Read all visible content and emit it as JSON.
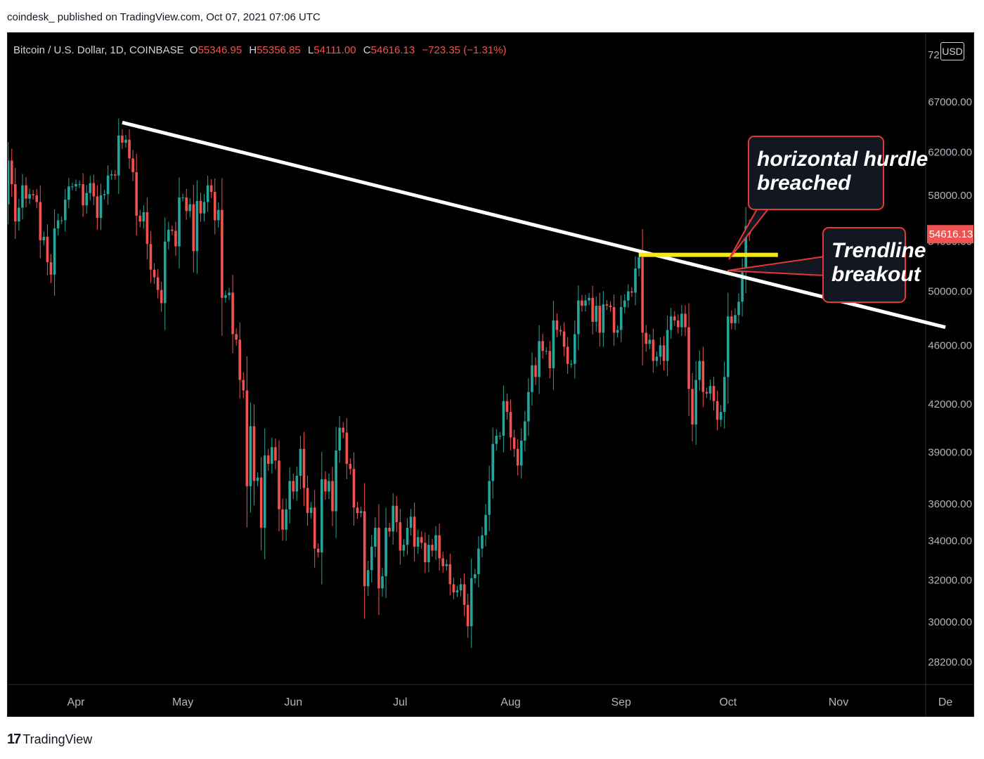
{
  "header": {
    "published_line": "coindesk_  published on TradingView.com, Oct 07, 2021 07:06 UTC"
  },
  "legend": {
    "symbol": "Bitcoin / U.S. Dollar, 1D, COINBASE",
    "o_label": "O",
    "o_value": "55346.95",
    "h_label": "H",
    "h_value": "55356.85",
    "l_label": "L",
    "l_value": "54111.00",
    "c_label": "C",
    "c_value": "54616.13",
    "change": "−723.35 (−1.31%)"
  },
  "currency_button": "USD",
  "footer": {
    "brand": "TradingView",
    "logo_text": "17"
  },
  "colors": {
    "up": "#26a69a",
    "down": "#ef5350",
    "background": "#000000",
    "trendline": "#ffffff",
    "hurdle": "#f5e71a",
    "callout_border": "#e53935",
    "callout_fill": "#131722"
  },
  "annotations": {
    "hurdle_callout": [
      "horizontal hurdle",
      "breached"
    ],
    "trend_callout": [
      "Trendline",
      "breakout"
    ]
  },
  "chart_data": {
    "type": "candlestick",
    "ylim": [
      28000,
      72000
    ],
    "y_scale": "log",
    "y_ticks": [
      "67000.00",
      "62000.00",
      "58000.00",
      "54000.00",
      "50000.00",
      "46000.00",
      "42000.00",
      "39000.00",
      "36000.00",
      "34000.00",
      "32000.00",
      "30000.00",
      "28200.00"
    ],
    "y_tick_values": [
      67000,
      62000,
      58000,
      54000,
      50000,
      46000,
      42000,
      39000,
      36000,
      34000,
      32000,
      30000,
      28200
    ],
    "top_tick_partial": "72",
    "x_ticks": [
      "Apr",
      "May",
      "Jun",
      "Jul",
      "Aug",
      "Sep",
      "Oct",
      "Nov",
      "De"
    ],
    "x_tick_dates": [
      "2021-04-01",
      "2021-05-01",
      "2021-06-01",
      "2021-07-01",
      "2021-08-01",
      "2021-09-01",
      "2021-10-01",
      "2021-11-01",
      "2021-12-01"
    ],
    "x_range": [
      "2021-03-12",
      "2021-12-01"
    ],
    "last_price_label": "54616.13",
    "last_price": 54616.13,
    "trendline": {
      "from": [
        "2021-04-14",
        64900
      ],
      "to": [
        "2021-12-01",
        47300
      ]
    },
    "horizontal_hurdle": {
      "from": "2021-09-06",
      "to": "2021-10-15",
      "price": 52900
    },
    "closes": [
      [
        "2021-03-12",
        57200
      ],
      [
        "2021-03-13",
        61200
      ],
      [
        "2021-03-14",
        59000
      ],
      [
        "2021-03-15",
        55700
      ],
      [
        "2021-03-16",
        56900
      ],
      [
        "2021-03-17",
        58900
      ],
      [
        "2021-03-18",
        57700
      ],
      [
        "2021-03-19",
        58100
      ],
      [
        "2021-03-20",
        58000
      ],
      [
        "2021-03-21",
        57400
      ],
      [
        "2021-03-22",
        54100
      ],
      [
        "2021-03-23",
        54400
      ],
      [
        "2021-03-24",
        52300
      ],
      [
        "2021-03-25",
        51300
      ],
      [
        "2021-03-26",
        55100
      ],
      [
        "2021-03-27",
        55800
      ],
      [
        "2021-03-28",
        55800
      ],
      [
        "2021-03-29",
        57600
      ],
      [
        "2021-03-30",
        58800
      ],
      [
        "2021-03-31",
        58800
      ],
      [
        "2021-04-01",
        59000
      ],
      [
        "2021-04-02",
        59000
      ],
      [
        "2021-04-03",
        57100
      ],
      [
        "2021-04-04",
        58200
      ],
      [
        "2021-04-05",
        59100
      ],
      [
        "2021-04-06",
        57900
      ],
      [
        "2021-04-07",
        56000
      ],
      [
        "2021-04-08",
        58000
      ],
      [
        "2021-04-09",
        58100
      ],
      [
        "2021-04-10",
        59800
      ],
      [
        "2021-04-11",
        59900
      ],
      [
        "2021-04-12",
        59800
      ],
      [
        "2021-04-13",
        63600
      ],
      [
        "2021-04-14",
        62900
      ],
      [
        "2021-04-15",
        63200
      ],
      [
        "2021-04-16",
        61400
      ],
      [
        "2021-04-17",
        60100
      ],
      [
        "2021-04-18",
        56200
      ],
      [
        "2021-04-19",
        55700
      ],
      [
        "2021-04-20",
        56500
      ],
      [
        "2021-04-21",
        53800
      ],
      [
        "2021-04-22",
        51700
      ],
      [
        "2021-04-23",
        51100
      ],
      [
        "2021-04-24",
        50100
      ],
      [
        "2021-04-25",
        49100
      ],
      [
        "2021-04-26",
        54000
      ],
      [
        "2021-04-27",
        55000
      ],
      [
        "2021-04-28",
        54900
      ],
      [
        "2021-04-29",
        53600
      ],
      [
        "2021-04-30",
        57800
      ],
      [
        "2021-05-01",
        57800
      ],
      [
        "2021-05-02",
        56600
      ],
      [
        "2021-05-03",
        57200
      ],
      [
        "2021-05-04",
        53200
      ],
      [
        "2021-05-05",
        57500
      ],
      [
        "2021-05-06",
        56400
      ],
      [
        "2021-05-07",
        57400
      ],
      [
        "2021-05-08",
        58900
      ],
      [
        "2021-05-09",
        58300
      ],
      [
        "2021-05-10",
        55800
      ],
      [
        "2021-05-11",
        56700
      ],
      [
        "2021-05-12",
        49500
      ],
      [
        "2021-05-13",
        49700
      ],
      [
        "2021-05-14",
        49900
      ],
      [
        "2021-05-15",
        46800
      ],
      [
        "2021-05-16",
        46400
      ],
      [
        "2021-05-17",
        43600
      ],
      [
        "2021-05-18",
        42900
      ],
      [
        "2021-05-19",
        37000
      ],
      [
        "2021-05-20",
        40600
      ],
      [
        "2021-05-21",
        37300
      ],
      [
        "2021-05-22",
        37500
      ],
      [
        "2021-05-23",
        34700
      ],
      [
        "2021-05-24",
        38800
      ],
      [
        "2021-05-25",
        38300
      ],
      [
        "2021-05-26",
        39300
      ],
      [
        "2021-05-27",
        38500
      ],
      [
        "2021-05-28",
        35700
      ],
      [
        "2021-05-29",
        34600
      ],
      [
        "2021-05-30",
        35700
      ],
      [
        "2021-05-31",
        37300
      ],
      [
        "2021-06-01",
        36700
      ],
      [
        "2021-06-02",
        37600
      ],
      [
        "2021-06-03",
        39200
      ],
      [
        "2021-06-04",
        36900
      ],
      [
        "2021-06-05",
        35500
      ],
      [
        "2021-06-06",
        35800
      ],
      [
        "2021-06-07",
        33600
      ],
      [
        "2021-06-08",
        33400
      ],
      [
        "2021-06-09",
        37400
      ],
      [
        "2021-06-10",
        36700
      ],
      [
        "2021-06-11",
        37300
      ],
      [
        "2021-06-12",
        35600
      ],
      [
        "2021-06-13",
        39100
      ],
      [
        "2021-06-14",
        40500
      ],
      [
        "2021-06-15",
        40200
      ],
      [
        "2021-06-16",
        38300
      ],
      [
        "2021-06-17",
        38000
      ],
      [
        "2021-06-18",
        35800
      ],
      [
        "2021-06-19",
        35500
      ],
      [
        "2021-06-20",
        35600
      ],
      [
        "2021-06-21",
        31700
      ],
      [
        "2021-06-22",
        32500
      ],
      [
        "2021-06-23",
        33700
      ],
      [
        "2021-06-24",
        34700
      ],
      [
        "2021-06-25",
        31600
      ],
      [
        "2021-06-26",
        32200
      ],
      [
        "2021-06-27",
        34700
      ],
      [
        "2021-06-28",
        34500
      ],
      [
        "2021-06-29",
        35900
      ],
      [
        "2021-06-30",
        35000
      ],
      [
        "2021-07-01",
        33500
      ],
      [
        "2021-07-02",
        33800
      ],
      [
        "2021-07-03",
        34700
      ],
      [
        "2021-07-04",
        35300
      ],
      [
        "2021-07-05",
        33700
      ],
      [
        "2021-07-06",
        34200
      ],
      [
        "2021-07-07",
        33900
      ],
      [
        "2021-07-08",
        32900
      ],
      [
        "2021-07-09",
        33800
      ],
      [
        "2021-07-10",
        33500
      ],
      [
        "2021-07-11",
        34300
      ],
      [
        "2021-07-12",
        33100
      ],
      [
        "2021-07-13",
        32700
      ],
      [
        "2021-07-14",
        32800
      ],
      [
        "2021-07-15",
        31800
      ],
      [
        "2021-07-16",
        31400
      ],
      [
        "2021-07-17",
        31500
      ],
      [
        "2021-07-18",
        31800
      ],
      [
        "2021-07-19",
        30800
      ],
      [
        "2021-07-20",
        29800
      ],
      [
        "2021-07-21",
        32100
      ],
      [
        "2021-07-22",
        32300
      ],
      [
        "2021-07-23",
        33600
      ],
      [
        "2021-07-24",
        34300
      ],
      [
        "2021-07-25",
        35400
      ],
      [
        "2021-07-26",
        37300
      ],
      [
        "2021-07-27",
        39500
      ],
      [
        "2021-07-28",
        40000
      ],
      [
        "2021-07-29",
        40000
      ],
      [
        "2021-07-30",
        42200
      ],
      [
        "2021-07-31",
        41500
      ],
      [
        "2021-08-01",
        39900
      ],
      [
        "2021-08-02",
        39200
      ],
      [
        "2021-08-03",
        38200
      ],
      [
        "2021-08-04",
        39700
      ],
      [
        "2021-08-05",
        40900
      ],
      [
        "2021-08-06",
        42800
      ],
      [
        "2021-08-07",
        44600
      ],
      [
        "2021-08-08",
        43800
      ],
      [
        "2021-08-09",
        46300
      ],
      [
        "2021-08-10",
        45600
      ],
      [
        "2021-08-11",
        45600
      ],
      [
        "2021-08-12",
        44400
      ],
      [
        "2021-08-13",
        47800
      ],
      [
        "2021-08-14",
        47100
      ],
      [
        "2021-08-15",
        47000
      ],
      [
        "2021-08-16",
        45900
      ],
      [
        "2021-08-17",
        44700
      ],
      [
        "2021-08-18",
        44700
      ],
      [
        "2021-08-19",
        46800
      ],
      [
        "2021-08-20",
        49300
      ],
      [
        "2021-08-21",
        48900
      ],
      [
        "2021-08-22",
        49300
      ],
      [
        "2021-08-23",
        49500
      ],
      [
        "2021-08-24",
        47700
      ],
      [
        "2021-08-25",
        48900
      ],
      [
        "2021-08-26",
        46900
      ],
      [
        "2021-08-27",
        49000
      ],
      [
        "2021-08-28",
        48900
      ],
      [
        "2021-08-29",
        48800
      ],
      [
        "2021-08-30",
        46900
      ],
      [
        "2021-08-31",
        47100
      ],
      [
        "2021-09-01",
        48800
      ],
      [
        "2021-09-02",
        49300
      ],
      [
        "2021-09-03",
        50000
      ],
      [
        "2021-09-04",
        49900
      ],
      [
        "2021-09-05",
        51800
      ],
      [
        "2021-09-06",
        52700
      ],
      [
        "2021-09-07",
        46900
      ],
      [
        "2021-09-08",
        46100
      ],
      [
        "2021-09-09",
        46400
      ],
      [
        "2021-09-10",
        44900
      ],
      [
        "2021-09-11",
        45200
      ],
      [
        "2021-09-12",
        46000
      ],
      [
        "2021-09-13",
        44900
      ],
      [
        "2021-09-14",
        47100
      ],
      [
        "2021-09-15",
        48100
      ],
      [
        "2021-09-16",
        47800
      ],
      [
        "2021-09-17",
        47300
      ],
      [
        "2021-09-18",
        48300
      ],
      [
        "2021-09-19",
        47300
      ],
      [
        "2021-09-20",
        43000
      ],
      [
        "2021-09-21",
        40700
      ],
      [
        "2021-09-22",
        43600
      ],
      [
        "2021-09-23",
        44900
      ],
      [
        "2021-09-24",
        42800
      ],
      [
        "2021-09-25",
        42700
      ],
      [
        "2021-09-26",
        43200
      ],
      [
        "2021-09-27",
        42200
      ],
      [
        "2021-09-28",
        41000
      ],
      [
        "2021-09-29",
        41500
      ],
      [
        "2021-09-30",
        43800
      ],
      [
        "2021-10-01",
        48100
      ],
      [
        "2021-10-02",
        47600
      ],
      [
        "2021-10-03",
        48200
      ],
      [
        "2021-10-04",
        49200
      ],
      [
        "2021-10-05",
        51500
      ],
      [
        "2021-10-06",
        55300
      ],
      [
        "2021-10-07",
        54616.13
      ]
    ]
  }
}
